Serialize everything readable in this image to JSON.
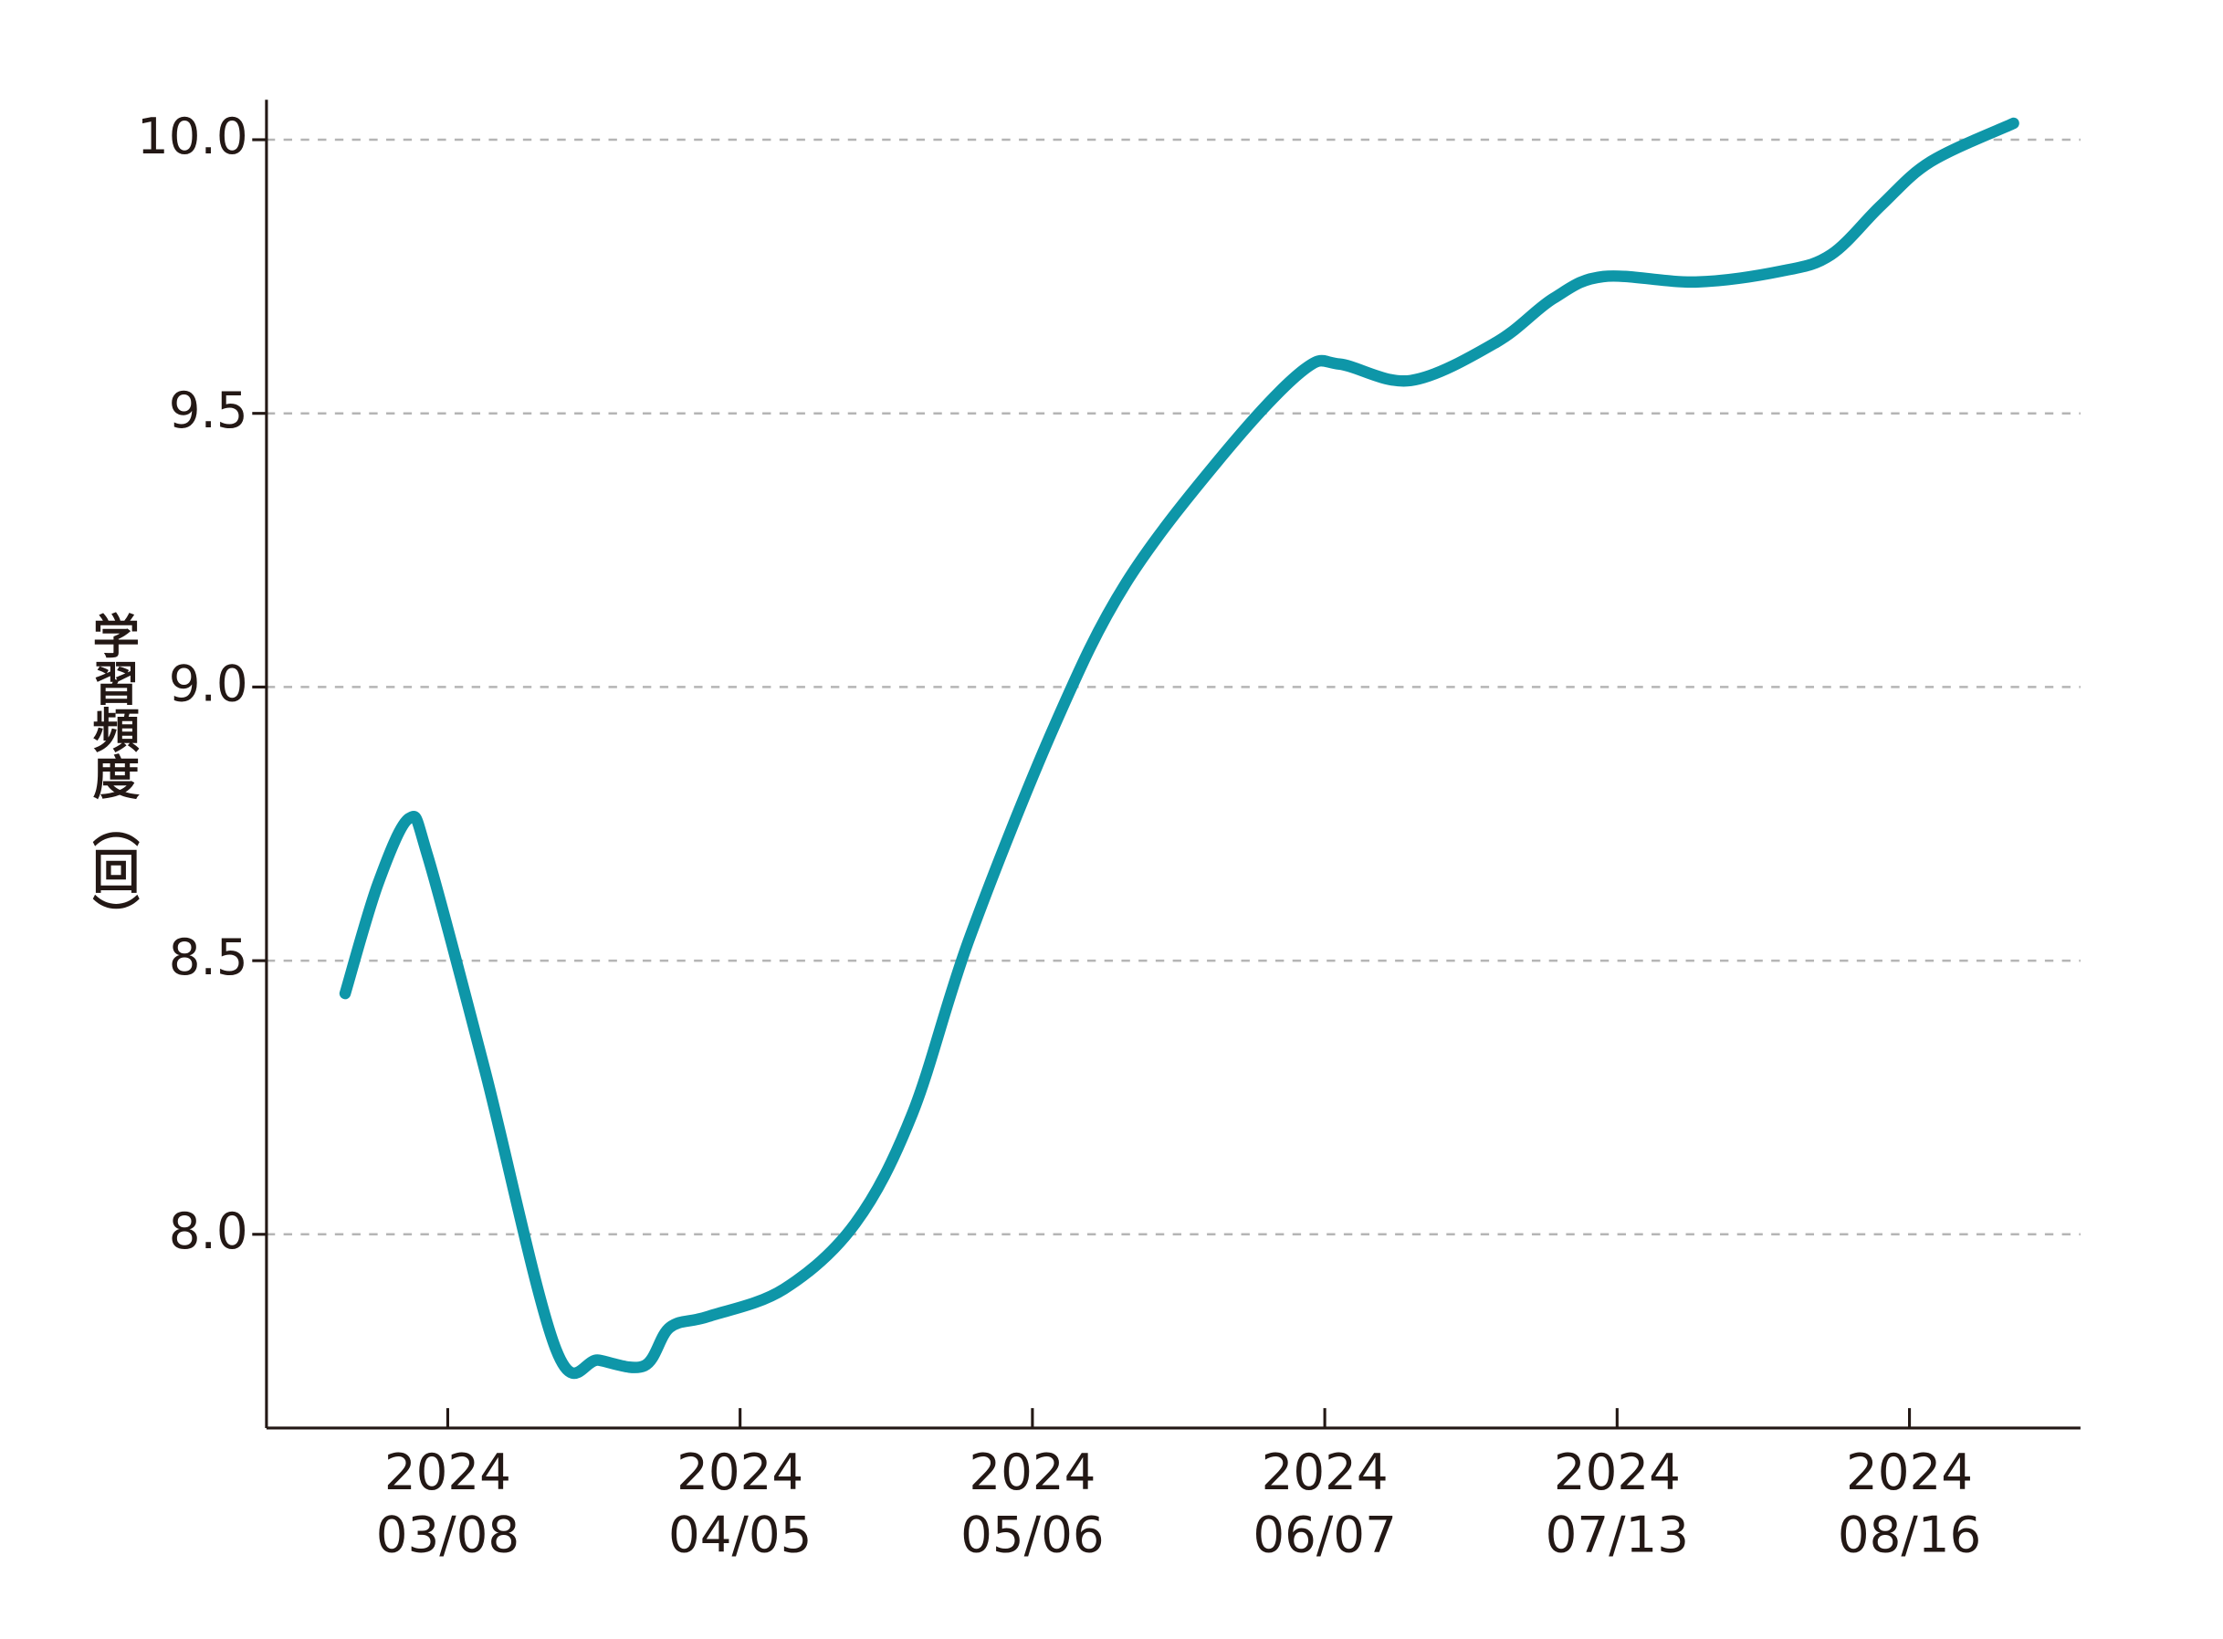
{
  "chart_data": {
    "type": "line",
    "y_label": "学習頻度（回）",
    "x": [
      -0.351,
      -0.239,
      -0.132,
      -0.068,
      0.127,
      0.37,
      0.517,
      0.673,
      0.76,
      0.892,
      1.15,
      1.394,
      1.589,
      1.784,
      2.076,
      2.32,
      2.661,
      2.929,
      3.051,
      3.294,
      3.587,
      3.782,
      3.953,
      4.269,
      4.562,
      4.732,
      4.903,
      5.073,
      5.356
    ],
    "series": [
      {
        "color": "#0e96a8",
        "values": [
          8.44,
          8.64,
          8.76,
          8.69,
          8.3,
          7.79,
          7.77,
          7.76,
          7.83,
          7.85,
          7.9,
          8.02,
          8.22,
          8.54,
          8.93,
          9.19,
          9.43,
          9.58,
          9.59,
          9.56,
          9.63,
          9.71,
          9.75,
          9.74,
          9.76,
          9.79,
          9.88,
          9.96,
          10.03
        ]
      }
    ],
    "xlim": [
      -0.62,
      5.585
    ],
    "xticks": [
      {
        "value": 0,
        "label": "2024\n03/08"
      },
      {
        "value": 1,
        "label": "2024\n04/05"
      },
      {
        "value": 2,
        "label": "2024\n05/06"
      },
      {
        "value": 3,
        "label": "2024\n06/07"
      },
      {
        "value": 4,
        "label": "2024\n07/13"
      },
      {
        "value": 5,
        "label": "2024\n08/16"
      }
    ],
    "ylim": [
      7.646,
      10.073
    ],
    "yticks": [
      {
        "value": 8,
        "label": "8.0"
      },
      {
        "value": 8.5,
        "label": "8.5"
      },
      {
        "value": 9,
        "label": "9.0"
      },
      {
        "value": 9.5,
        "label": "9.5"
      },
      {
        "value": 10,
        "label": "10.0"
      }
    ],
    "grid": true
  }
}
